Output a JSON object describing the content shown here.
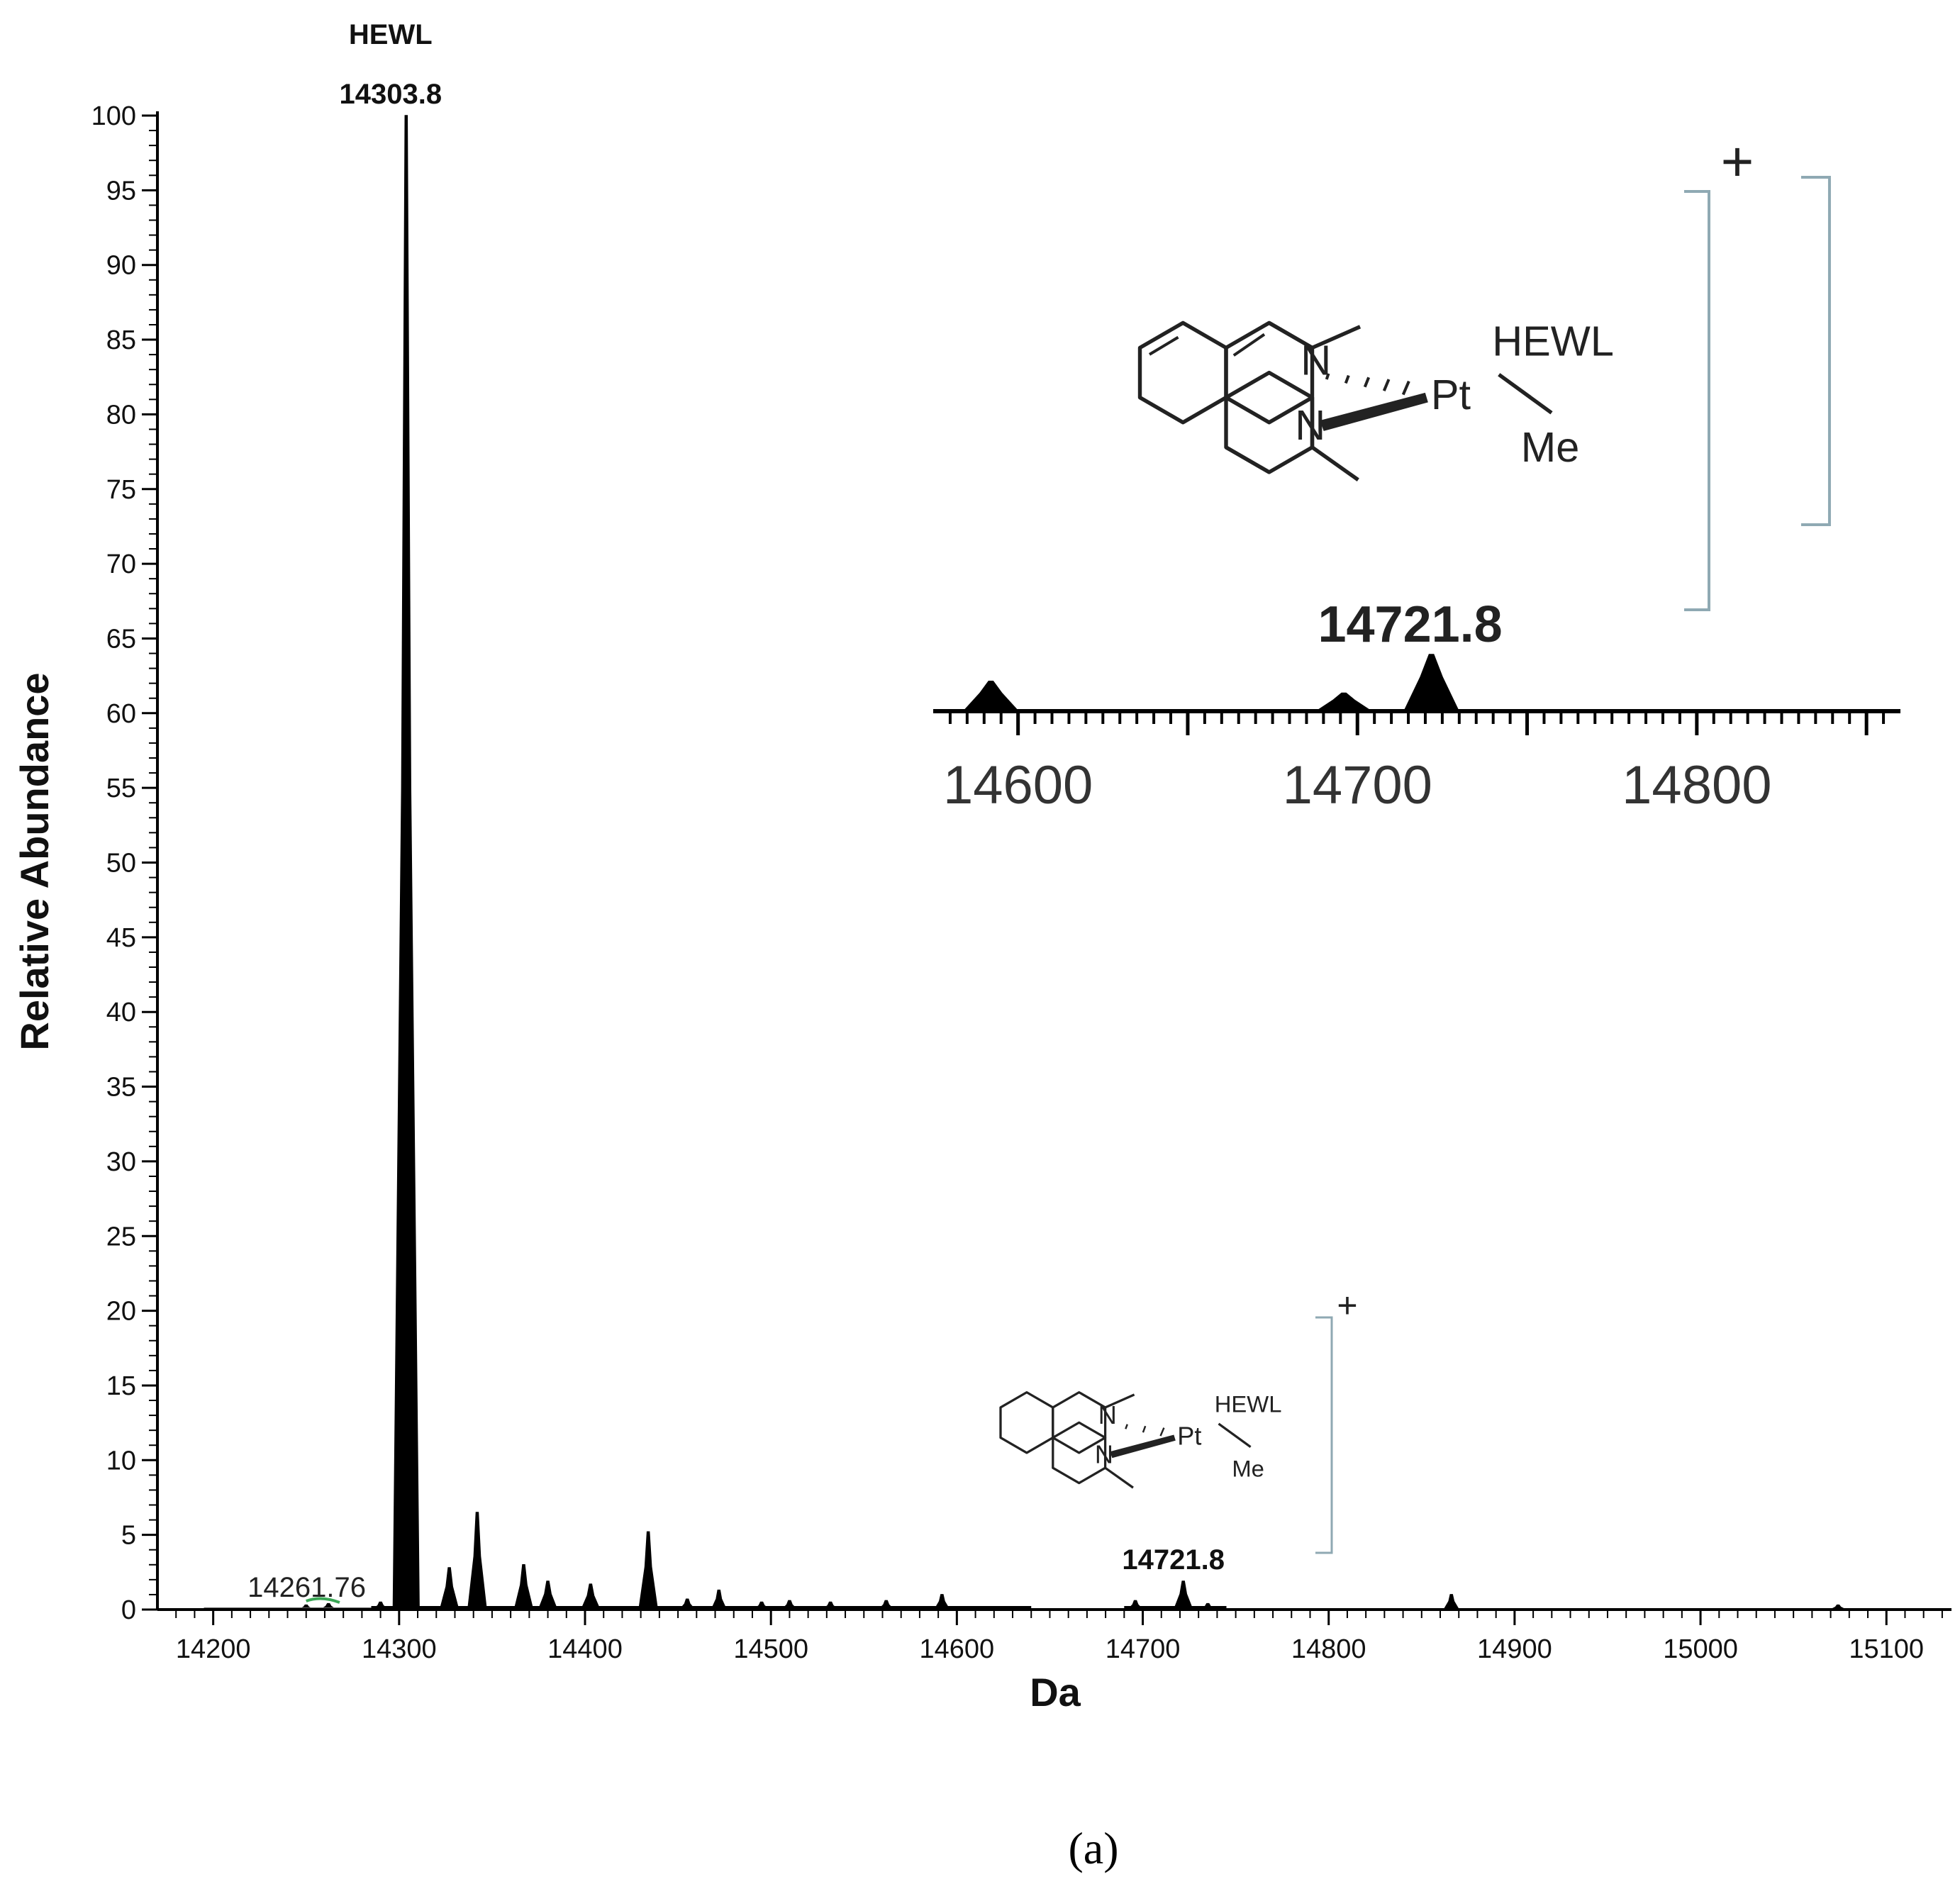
{
  "chart_data": [
    {
      "type": "line",
      "title": "",
      "xlabel": "Da",
      "ylabel": "Relative Abundance",
      "xlim": [
        14170,
        15135
      ],
      "ylim": [
        0,
        100
      ],
      "xticks": [
        14200,
        14300,
        14400,
        14500,
        14600,
        14700,
        14800,
        14900,
        15000,
        15100
      ],
      "xtick_labels": [
        "14200",
        "14300",
        "14400",
        "14500",
        "14600",
        "14700",
        "14800",
        "14900",
        "15000",
        "15100"
      ],
      "yticks": [
        0,
        5,
        10,
        15,
        20,
        25,
        30,
        35,
        40,
        45,
        50,
        55,
        60,
        65,
        70,
        75,
        80,
        85,
        90,
        95,
        100
      ],
      "ytick_labels": [
        "0",
        "5",
        "10",
        "15",
        "20",
        "25",
        "30",
        "35",
        "40",
        "45",
        "50",
        "55",
        "60",
        "65",
        "70",
        "75",
        "80",
        "85",
        "90",
        "95",
        "100"
      ],
      "grid": false,
      "series": [
        {
          "peaks": [
            {
              "x": 14250,
              "y": 0.3
            },
            {
              "x": 14262,
              "y": 0.4
            },
            {
              "x": 14290,
              "y": 0.5
            },
            {
              "x": 14303.8,
              "y": 100
            },
            {
              "x": 14327,
              "y": 2.8
            },
            {
              "x": 14342,
              "y": 6.5
            },
            {
              "x": 14367,
              "y": 3.0
            },
            {
              "x": 14380,
              "y": 1.9
            },
            {
              "x": 14403,
              "y": 1.7
            },
            {
              "x": 14434,
              "y": 5.2
            },
            {
              "x": 14455,
              "y": 0.7
            },
            {
              "x": 14472,
              "y": 1.3
            },
            {
              "x": 14495,
              "y": 0.5
            },
            {
              "x": 14510,
              "y": 0.6
            },
            {
              "x": 14532,
              "y": 0.5
            },
            {
              "x": 14562,
              "y": 0.6
            },
            {
              "x": 14592,
              "y": 1.0
            },
            {
              "x": 14696,
              "y": 0.6
            },
            {
              "x": 14721.8,
              "y": 1.9
            },
            {
              "x": 14735,
              "y": 0.4
            },
            {
              "x": 14866,
              "y": 1.0
            },
            {
              "x": 15074,
              "y": 0.3
            }
          ]
        }
      ],
      "annotations": [
        {
          "text": "HEWL",
          "x": 14303.8
        },
        {
          "text": "14303.8",
          "x": 14303.8
        },
        {
          "text": "14261.76",
          "x": 14261.76
        },
        {
          "text": "14721.8",
          "x": 14721.8
        }
      ]
    },
    {
      "type": "line",
      "title": "",
      "xlim": [
        14575,
        14860
      ],
      "xticks": [
        14600,
        14700,
        14800
      ],
      "xtick_labels": [
        "14600",
        "14700",
        "14800"
      ],
      "series": [
        {
          "peaks": [
            {
              "x": 14592,
              "y": 1.0
            },
            {
              "x": 14696,
              "y": 0.6
            },
            {
              "x": 14721.8,
              "y": 1.9
            }
          ]
        }
      ],
      "annotations": [
        {
          "text": "14721.8",
          "x": 14721.8
        }
      ]
    }
  ],
  "structure_large": {
    "n_top": "N",
    "n_bottom": "N",
    "metal": "Pt",
    "ligand": "HEWL",
    "methyl": "Me",
    "charge": "+"
  },
  "structure_small": {
    "n_top": "N",
    "n_bottom": "N",
    "metal": "Pt",
    "ligand": "HEWL",
    "methyl": "Me",
    "charge": "+"
  },
  "panel_label": "(a)",
  "colors": {
    "trace": "#000000",
    "bracket": "#8fa9b3",
    "green_marker": "#3aa655"
  }
}
